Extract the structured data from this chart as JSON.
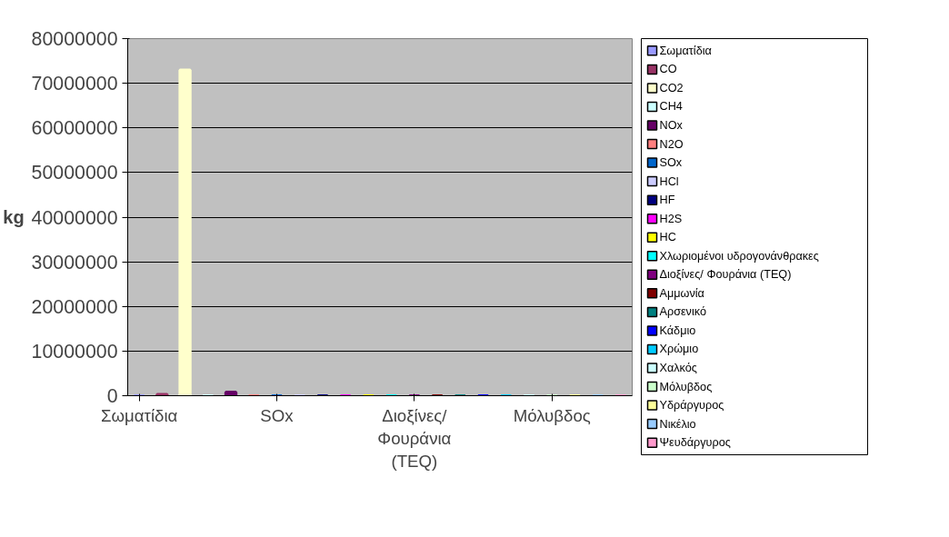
{
  "chart_data": {
    "type": "bar",
    "ylabel": "kg",
    "categories": [
      "Σωματίδια",
      null,
      null,
      null,
      null,
      null,
      "SOx",
      null,
      null,
      null,
      null,
      null,
      "Διοξίνες/ Φουράνια (TEQ)",
      null,
      null,
      null,
      null,
      null,
      "Μόλυβδος",
      null,
      null,
      null
    ],
    "ylim": [
      0,
      80000000
    ],
    "yticks": [
      0,
      10000000,
      20000000,
      30000000,
      40000000,
      50000000,
      60000000,
      70000000,
      80000000
    ],
    "grid": "y",
    "legend": "right",
    "series": [
      {
        "name": "Σωματίδια",
        "color": "#9999ff",
        "values": [
          0,
          null,
          null,
          null,
          null,
          null,
          null,
          null,
          null,
          null,
          null,
          null,
          null,
          null,
          null,
          null,
          null,
          null,
          null,
          null,
          null,
          null
        ]
      },
      {
        "name": "CO",
        "color": "#993366",
        "values": [
          null,
          300000,
          null,
          null,
          null,
          null,
          null,
          null,
          null,
          null,
          null,
          null,
          null,
          null,
          null,
          null,
          null,
          null,
          null,
          null,
          null,
          null
        ]
      },
      {
        "name": "CO2",
        "color": "#ffffcc",
        "values": [
          null,
          null,
          73000000,
          null,
          null,
          null,
          null,
          null,
          null,
          null,
          null,
          null,
          null,
          null,
          null,
          null,
          null,
          null,
          null,
          null,
          null,
          null
        ]
      },
      {
        "name": "CH4",
        "color": "#ccffff",
        "values": [
          null,
          null,
          null,
          0,
          null,
          null,
          null,
          null,
          null,
          null,
          null,
          null,
          null,
          null,
          null,
          null,
          null,
          null,
          null,
          null,
          null,
          null
        ]
      },
      {
        "name": "NOx",
        "color": "#660066",
        "values": [
          null,
          null,
          null,
          null,
          800000,
          null,
          null,
          null,
          null,
          null,
          null,
          null,
          null,
          null,
          null,
          null,
          null,
          null,
          null,
          null,
          null,
          null
        ]
      },
      {
        "name": "N2O",
        "color": "#ff8080",
        "values": [
          null,
          null,
          null,
          null,
          null,
          0,
          null,
          null,
          null,
          null,
          null,
          null,
          null,
          null,
          null,
          null,
          null,
          null,
          null,
          null,
          null,
          null
        ]
      },
      {
        "name": "SOx",
        "color": "#0066cc",
        "values": [
          null,
          null,
          null,
          null,
          null,
          null,
          0,
          null,
          null,
          null,
          null,
          null,
          null,
          null,
          null,
          null,
          null,
          null,
          null,
          null,
          null,
          null
        ]
      },
      {
        "name": "HCl",
        "color": "#ccccff",
        "values": [
          null,
          null,
          null,
          null,
          null,
          null,
          null,
          0,
          null,
          null,
          null,
          null,
          null,
          null,
          null,
          null,
          null,
          null,
          null,
          null,
          null,
          null
        ]
      },
      {
        "name": "HF",
        "color": "#000080",
        "values": [
          null,
          null,
          null,
          null,
          null,
          null,
          null,
          null,
          0,
          null,
          null,
          null,
          null,
          null,
          null,
          null,
          null,
          null,
          null,
          null,
          null,
          null
        ]
      },
      {
        "name": "H2S",
        "color": "#ff00ff",
        "values": [
          null,
          null,
          null,
          null,
          null,
          null,
          null,
          null,
          null,
          0,
          null,
          null,
          null,
          null,
          null,
          null,
          null,
          null,
          null,
          null,
          null,
          null
        ]
      },
      {
        "name": "HC",
        "color": "#ffff00",
        "values": [
          null,
          null,
          null,
          null,
          null,
          null,
          null,
          null,
          null,
          null,
          0,
          null,
          null,
          null,
          null,
          null,
          null,
          null,
          null,
          null,
          null,
          null
        ]
      },
      {
        "name": "Χλωριομένοι υδρογονάνθρακες",
        "color": "#00ffff",
        "values": [
          null,
          null,
          null,
          null,
          null,
          null,
          null,
          null,
          null,
          null,
          null,
          0,
          null,
          null,
          null,
          null,
          null,
          null,
          null,
          null,
          null,
          null
        ]
      },
      {
        "name": "Διοξίνες/ Φουράνια (TEQ)",
        "color": "#800080",
        "values": [
          null,
          null,
          null,
          null,
          null,
          null,
          null,
          null,
          null,
          null,
          null,
          null,
          0,
          null,
          null,
          null,
          null,
          null,
          null,
          null,
          null,
          null
        ]
      },
      {
        "name": "Αμμωνία",
        "color": "#800000",
        "values": [
          null,
          null,
          null,
          null,
          null,
          null,
          null,
          null,
          null,
          null,
          null,
          null,
          null,
          0,
          null,
          null,
          null,
          null,
          null,
          null,
          null,
          null
        ]
      },
      {
        "name": "Αρσενικό",
        "color": "#008080",
        "values": [
          null,
          null,
          null,
          null,
          null,
          null,
          null,
          null,
          null,
          null,
          null,
          null,
          null,
          null,
          0,
          null,
          null,
          null,
          null,
          null,
          null,
          null
        ]
      },
      {
        "name": "Κάδμιο",
        "color": "#0000ff",
        "values": [
          null,
          null,
          null,
          null,
          null,
          null,
          null,
          null,
          null,
          null,
          null,
          null,
          null,
          null,
          null,
          0,
          null,
          null,
          null,
          null,
          null,
          null
        ]
      },
      {
        "name": "Χρώμιο",
        "color": "#00ccff",
        "values": [
          null,
          null,
          null,
          null,
          null,
          null,
          null,
          null,
          null,
          null,
          null,
          null,
          null,
          null,
          null,
          null,
          0,
          null,
          null,
          null,
          null,
          null
        ]
      },
      {
        "name": "Χαλκός",
        "color": "#ccffff",
        "values": [
          null,
          null,
          null,
          null,
          null,
          null,
          null,
          null,
          null,
          null,
          null,
          null,
          null,
          null,
          null,
          null,
          null,
          0,
          null,
          null,
          null,
          null
        ]
      },
      {
        "name": "Μόλυβδος",
        "color": "#ccffcc",
        "values": [
          null,
          null,
          null,
          null,
          null,
          null,
          null,
          null,
          null,
          null,
          null,
          null,
          null,
          null,
          null,
          null,
          null,
          null,
          0,
          null,
          null,
          null
        ]
      },
      {
        "name": "Υδράργυρος",
        "color": "#ffff99",
        "values": [
          null,
          null,
          null,
          null,
          null,
          null,
          null,
          null,
          null,
          null,
          null,
          null,
          null,
          null,
          null,
          null,
          null,
          null,
          null,
          0,
          null,
          null
        ]
      },
      {
        "name": "Νικέλιο",
        "color": "#99ccff",
        "values": [
          null,
          null,
          null,
          null,
          null,
          null,
          null,
          null,
          null,
          null,
          null,
          null,
          null,
          null,
          null,
          null,
          null,
          null,
          null,
          null,
          0,
          null
        ]
      },
      {
        "name": "Ψευδάργυρος",
        "color": "#ff99cc",
        "values": [
          null,
          null,
          null,
          null,
          null,
          null,
          null,
          null,
          null,
          null,
          null,
          null,
          null,
          null,
          null,
          null,
          null,
          null,
          null,
          null,
          null,
          0
        ]
      }
    ]
  }
}
